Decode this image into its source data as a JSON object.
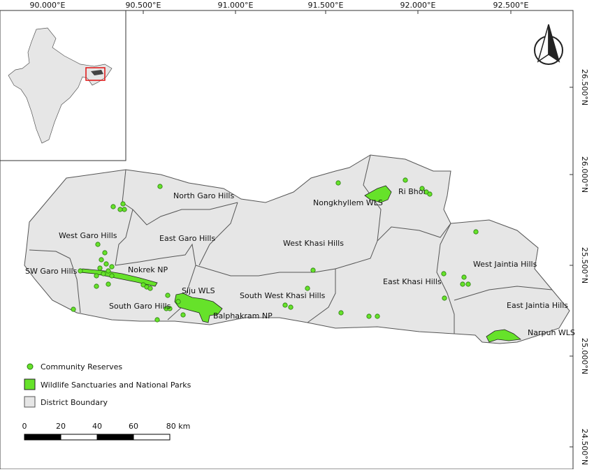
{
  "longitude_labels": [
    "90.000°E",
    "90.500°E",
    "91.000°E",
    "91.500°E",
    "92.000°E",
    "92.500°E"
  ],
  "latitude_labels": [
    "26.500°N",
    "26.000°N",
    "25.500°N",
    "25.000°N",
    "24.500°N"
  ],
  "districts": [
    "North Garo Hills",
    "West Garo Hills",
    "East Garo Hills",
    "SW Garo Hills",
    "South Garo Hills",
    "West Khasi Hills",
    "South West Khasi Hills",
    "East Khasi Hills",
    "Ri Bhoi",
    "West Jaintia Hills",
    "East Jaintia Hills"
  ],
  "protected_areas": [
    "Nokrek NP",
    "Siju WLS",
    "Balphakram NP",
    "Nongkhyllem WLS",
    "Narpuh WLS"
  ],
  "legend": [
    "Community Reserves",
    "Wildlife Sanctuaries and National Parks",
    "District Boundary"
  ],
  "scale_bar": [
    "0",
    "20",
    "40",
    "60",
    "80 km"
  ]
}
